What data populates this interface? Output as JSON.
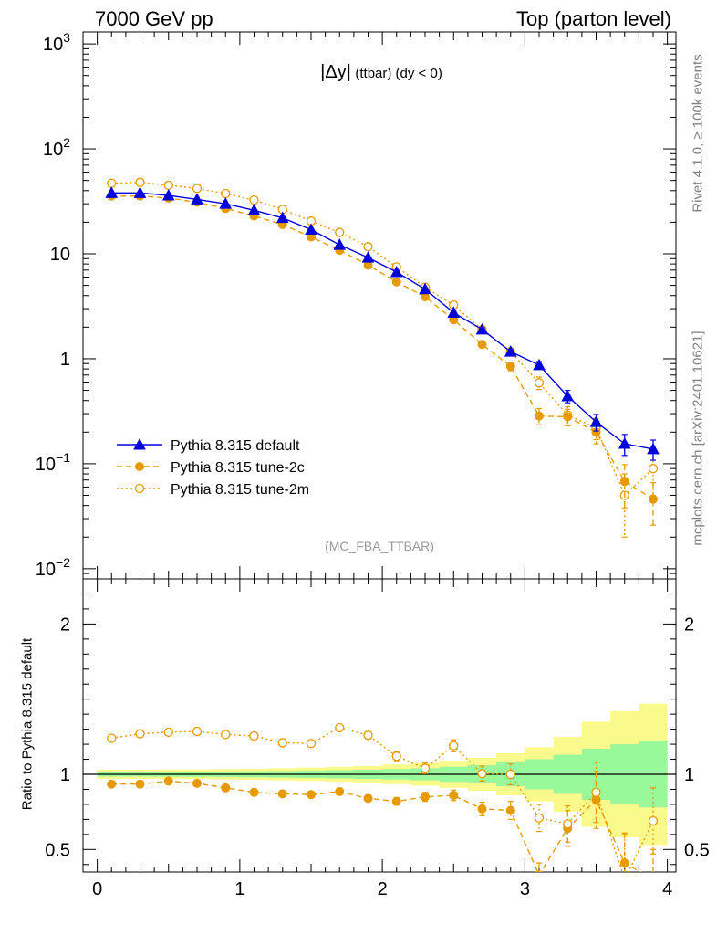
{
  "header": {
    "left": "7000 GeV pp",
    "right": "Top (parton level)"
  },
  "side_text": {
    "rivet": "Rivet 4.1.0, ≥ 100k events",
    "mcplots": "mcplots.cern.ch [arXiv:2401.10621]"
  },
  "chart_data": [
    {
      "type": "line",
      "panel": "main",
      "title": "|Δy| (ttbar) (dy < 0)",
      "title_main": "|Δy|",
      "title_sub": "(ttbar) (dy < 0)",
      "analysis": "(MC_FBA_TTBAR)",
      "yscale": "log",
      "xlim": [
        -0.1,
        4.06
      ],
      "ylim": [
        0.008,
        1300
      ],
      "y_ticks": [
        {
          "value": 1000,
          "base": "10",
          "exp": "3"
        },
        {
          "value": 100,
          "base": "10",
          "exp": "2"
        },
        {
          "value": 10,
          "base": "10",
          "exp": ""
        },
        {
          "value": 1,
          "base": "1",
          "exp": ""
        },
        {
          "value": 0.1,
          "base": "10",
          "exp": "−1"
        },
        {
          "value": 0.01,
          "base": "10",
          "exp": "−2"
        }
      ],
      "x": [
        0.1,
        0.3,
        0.5,
        0.7,
        0.9,
        1.1,
        1.3,
        1.5,
        1.7,
        1.9,
        2.1,
        2.3,
        2.5,
        2.7,
        2.9,
        3.1,
        3.3,
        3.5,
        3.7,
        3.9
      ],
      "series": [
        {
          "name": "Pythia 8.315 default",
          "color": "#0000dd",
          "style": "solid",
          "marker": "triangle",
          "values": [
            38,
            38,
            36,
            33,
            30,
            26,
            22,
            17,
            12.2,
            9.2,
            6.7,
            4.6,
            2.75,
            1.9,
            1.17,
            0.87,
            0.44,
            0.25,
            0.155,
            0.138
          ],
          "errors": [
            0.8,
            0.8,
            0.8,
            0.7,
            0.6,
            0.5,
            0.5,
            0.4,
            0.3,
            0.25,
            0.2,
            0.15,
            0.1,
            0.08,
            0.06,
            0.07,
            0.06,
            0.045,
            0.035,
            0.03
          ]
        },
        {
          "name": "Pythia 8.315 tune-2c",
          "color": "#e69a00",
          "style": "dashed",
          "marker": "filled-circle",
          "values": [
            35.5,
            35.5,
            34,
            31,
            27,
            23,
            19,
            14.5,
            10.8,
            7.8,
            5.4,
            3.9,
            2.35,
            1.37,
            0.85,
            0.285,
            0.28,
            0.2,
            0.068,
            0.046
          ],
          "errors": [
            0.8,
            0.8,
            0.8,
            0.7,
            0.6,
            0.5,
            0.5,
            0.4,
            0.3,
            0.25,
            0.2,
            0.15,
            0.12,
            0.1,
            0.08,
            0.05,
            0.05,
            0.045,
            0.03,
            0.02
          ]
        },
        {
          "name": "Pythia 8.315 tune-2m",
          "color": "#e69a00",
          "style": "dotted",
          "marker": "open-circle",
          "values": [
            47,
            48,
            45,
            42,
            37.5,
            32.5,
            26.5,
            20.5,
            16,
            11.7,
            7.5,
            4.8,
            3.25,
            1.9,
            1.17,
            0.59,
            0.29,
            0.22,
            0.05,
            0.09
          ],
          "errors": [
            0.9,
            0.9,
            0.9,
            0.8,
            0.7,
            0.6,
            0.5,
            0.5,
            0.4,
            0.3,
            0.2,
            0.15,
            0.12,
            0.1,
            0.08,
            0.08,
            0.06,
            0.05,
            0.03,
            0.04
          ]
        }
      ]
    },
    {
      "type": "line",
      "panel": "ratio",
      "ylabel": "Ratio to Pythia 8.315 default",
      "xlim": [
        -0.1,
        4.06
      ],
      "ylim": [
        0.35,
        2.3
      ],
      "x_ticks": [
        "0",
        "1",
        "2",
        "3",
        "4"
      ],
      "y_ticks": [
        "0.5",
        "1",
        "2"
      ],
      "x": [
        0.1,
        0.3,
        0.5,
        0.7,
        0.9,
        1.1,
        1.3,
        1.5,
        1.7,
        1.9,
        2.1,
        2.3,
        2.5,
        2.7,
        2.9,
        3.1,
        3.3,
        3.5,
        3.7,
        3.9
      ],
      "band_inner_halfwidth": [
        0.015,
        0.015,
        0.016,
        0.017,
        0.018,
        0.02,
        0.022,
        0.024,
        0.027,
        0.03,
        0.035,
        0.04,
        0.05,
        0.06,
        0.08,
        0.1,
        0.13,
        0.17,
        0.2,
        0.22
      ],
      "band_outer_halfwidth": [
        0.03,
        0.03,
        0.031,
        0.032,
        0.034,
        0.037,
        0.04,
        0.045,
        0.05,
        0.055,
        0.065,
        0.075,
        0.09,
        0.11,
        0.14,
        0.18,
        0.25,
        0.35,
        0.42,
        0.47
      ],
      "band_colors": {
        "inner": "#99f899",
        "outer": "#fafa8c"
      },
      "series": [
        {
          "name": "Pythia 8.315 tune-2c",
          "color": "#e69a00",
          "style": "dashed",
          "marker": "filled-circle",
          "values": [
            0.935,
            0.935,
            0.955,
            0.94,
            0.91,
            0.88,
            0.87,
            0.865,
            0.885,
            0.84,
            0.82,
            0.85,
            0.86,
            0.77,
            0.76,
            0.33,
            0.64,
            0.83,
            0.41,
            0.3
          ],
          "errors": [
            0.01,
            0.01,
            0.01,
            0.01,
            0.012,
            0.013,
            0.014,
            0.016,
            0.02,
            0.022,
            0.025,
            0.03,
            0.035,
            0.045,
            0.06,
            0.08,
            0.12,
            0.19,
            0.2,
            0.2
          ]
        },
        {
          "name": "Pythia 8.315 tune-2m",
          "color": "#e69a00",
          "style": "dotted",
          "marker": "open-circle",
          "values": [
            1.24,
            1.27,
            1.28,
            1.285,
            1.265,
            1.255,
            1.21,
            1.205,
            1.31,
            1.26,
            1.12,
            1.04,
            1.19,
            1.005,
            1.0,
            0.71,
            0.67,
            0.88,
            0.3,
            0.69
          ],
          "errors": [
            0.01,
            0.01,
            0.012,
            0.013,
            0.014,
            0.015,
            0.016,
            0.018,
            0.022,
            0.025,
            0.03,
            0.035,
            0.04,
            0.05,
            0.07,
            0.09,
            0.12,
            0.2,
            0.3,
            0.22
          ]
        }
      ]
    }
  ]
}
